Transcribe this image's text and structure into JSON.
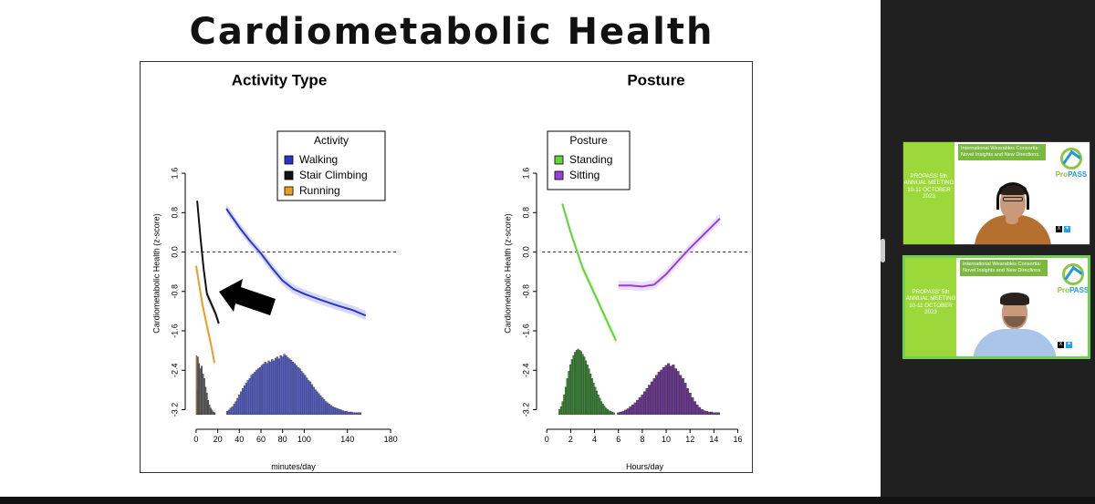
{
  "slide": {
    "title": "Cardiometabolic Health"
  },
  "chart_data": [
    {
      "type": "line",
      "title": "Activity Type",
      "xlabel": "minutes/day",
      "ylabel": "Cardiometabolic Health (z-score)",
      "xlim": [
        -5,
        185
      ],
      "ylim": [
        -3.45,
        2.6
      ],
      "x_ticks": [
        "0",
        "20",
        "40",
        "60",
        "80",
        "100",
        "140",
        "180"
      ],
      "x_tick_values": [
        0,
        20,
        40,
        60,
        80,
        100,
        140,
        180
      ],
      "y_ticks": [
        "-3.2",
        "-2.4",
        "-1.6",
        "-0.8",
        "0.0",
        "0.8",
        "1.6"
      ],
      "y_tick_values": [
        -3.2,
        -2.4,
        -1.6,
        -0.8,
        0.0,
        0.8,
        1.6
      ],
      "reference_line_y": 0,
      "legend_title": "Activity",
      "legend_placement": "top-right",
      "series": [
        {
          "name": "Walking",
          "color": "#2a36c8",
          "band_color": "#b4b8f0",
          "x": [
            28,
            40,
            50,
            60,
            70,
            80,
            90,
            100,
            115,
            130,
            145,
            157
          ],
          "y": [
            0.88,
            0.5,
            0.22,
            -0.03,
            -0.32,
            -0.58,
            -0.75,
            -0.85,
            -0.97,
            -1.08,
            -1.18,
            -1.29
          ]
        },
        {
          "name": "Stair Climbing",
          "color": "#111111",
          "band_color": "#bbbbbb",
          "x": [
            1,
            4,
            7,
            10,
            14,
            18,
            21
          ],
          "y": [
            1.04,
            0.3,
            -0.35,
            -0.85,
            -1.05,
            -1.25,
            -1.45
          ]
        },
        {
          "name": "Running",
          "color": "#e8a020",
          "band_color": "#f3d79a",
          "x": [
            0,
            3,
            6,
            10,
            14,
            17
          ],
          "y": [
            -0.28,
            -0.68,
            -1.08,
            -1.5,
            -1.9,
            -2.25
          ]
        }
      ],
      "histograms": [
        {
          "name": "Running",
          "color": "#e8a020",
          "x_start": 0,
          "bin_width": 0.65,
          "rel_heights": [
            0.9,
            0.35,
            0.25,
            0.2,
            0.15,
            0.1,
            0.07,
            0.05,
            0.03
          ]
        },
        {
          "name": "Stair Climbing",
          "color": "#666666",
          "x_start": 1,
          "bin_width": 1.2,
          "rel_heights": [
            0.88,
            0.78,
            0.7,
            0.74,
            0.62,
            0.55,
            0.42,
            0.33,
            0.22,
            0.15,
            0.1,
            0.07,
            0.04,
            0.03
          ]
        },
        {
          "name": "Walking",
          "color": "#5a63c8",
          "x_start": 28,
          "bin_width": 1.6,
          "rel_heights": [
            0.05,
            0.07,
            0.1,
            0.12,
            0.16,
            0.2,
            0.25,
            0.3,
            0.35,
            0.4,
            0.44,
            0.48,
            0.52,
            0.55,
            0.6,
            0.62,
            0.65,
            0.68,
            0.7,
            0.72,
            0.75,
            0.77,
            0.8,
            0.78,
            0.82,
            0.8,
            0.84,
            0.82,
            0.86,
            0.88,
            0.85,
            0.9,
            0.88,
            0.92,
            0.9,
            0.87,
            0.85,
            0.83,
            0.8,
            0.78,
            0.75,
            0.72,
            0.7,
            0.66,
            0.63,
            0.6,
            0.56,
            0.52,
            0.5,
            0.46,
            0.42,
            0.38,
            0.35,
            0.32,
            0.29,
            0.26,
            0.23,
            0.2,
            0.18,
            0.16,
            0.14,
            0.12,
            0.11,
            0.1,
            0.09,
            0.08,
            0.07,
            0.06,
            0.05,
            0.05,
            0.04,
            0.04,
            0.04,
            0.03,
            0.03,
            0.03,
            0.03,
            0.03
          ]
        }
      ],
      "annotations": [
        {
          "type": "arrow",
          "color": "#000000",
          "points_to": "Stair Climbing / Running"
        }
      ]
    },
    {
      "type": "line",
      "title": "Posture",
      "xlabel": "Hours/day",
      "ylabel": "Cardiometabolic Health (z-score)",
      "xlim": [
        -0.4,
        16.8
      ],
      "ylim": [
        -3.45,
        2.6
      ],
      "x_ticks": [
        "0",
        "2",
        "4",
        "6",
        "8",
        "10",
        "12",
        "14",
        "16"
      ],
      "x_tick_values": [
        0,
        2,
        4,
        6,
        8,
        10,
        12,
        14,
        16
      ],
      "y_ticks": [
        "-3.2",
        "-2.4",
        "-1.6",
        "-0.8",
        "0.0",
        "0.8",
        "1.6"
      ],
      "y_tick_values": [
        -3.2,
        -2.4,
        -1.6,
        -0.8,
        0.0,
        0.8,
        1.6
      ],
      "reference_line_y": 0,
      "legend_title": "Posture",
      "legend_placement": "top-left",
      "series": [
        {
          "name": "Standing",
          "color": "#66d23a",
          "band_color": "#c8f0b8",
          "x": [
            1.3,
            2.0,
            3.0,
            4.0,
            5.0,
            5.8
          ],
          "y": [
            0.98,
            0.4,
            -0.32,
            -0.85,
            -1.38,
            -1.8
          ]
        },
        {
          "name": "Sitting",
          "color": "#9a3ed6",
          "band_color": "#dcc4f0",
          "x": [
            6.0,
            7.0,
            8.0,
            9.0,
            10.0,
            11.0,
            12.0,
            13.0,
            14.5
          ],
          "y": [
            -0.68,
            -0.68,
            -0.7,
            -0.66,
            -0.45,
            -0.18,
            0.08,
            0.32,
            0.68
          ]
        }
      ],
      "histograms": [
        {
          "name": "Standing",
          "color": "#3e8a3a",
          "x_start": 1.0,
          "bin_width": 0.13,
          "rel_heights": [
            0.08,
            0.12,
            0.2,
            0.3,
            0.42,
            0.55,
            0.66,
            0.76,
            0.84,
            0.9,
            0.95,
            0.98,
            1.0,
            0.98,
            0.96,
            0.92,
            0.88,
            0.82,
            0.76,
            0.7,
            0.62,
            0.55,
            0.48,
            0.42,
            0.36,
            0.3,
            0.25,
            0.2,
            0.16,
            0.13,
            0.1,
            0.08,
            0.06,
            0.05,
            0.04,
            0.03
          ]
        },
        {
          "name": "Sitting",
          "color": "#6a3a8e",
          "x_start": 5.9,
          "bin_width": 0.2,
          "rel_heights": [
            0.03,
            0.04,
            0.05,
            0.07,
            0.09,
            0.12,
            0.15,
            0.18,
            0.22,
            0.26,
            0.3,
            0.35,
            0.4,
            0.45,
            0.5,
            0.55,
            0.6,
            0.65,
            0.68,
            0.72,
            0.75,
            0.78,
            0.74,
            0.76,
            0.7,
            0.66,
            0.6,
            0.55,
            0.48,
            0.4,
            0.33,
            0.26,
            0.2,
            0.15,
            0.11,
            0.08,
            0.06,
            0.05,
            0.04,
            0.04,
            0.03,
            0.03,
            0.03
          ]
        }
      ]
    }
  ],
  "sidebar": {
    "tiles": [
      {
        "id": "tile-1",
        "active_speaker": false,
        "left_text": "PROPASS' 5th ANNUAL MEETING 10-11 OCTOBER 2023",
        "header_text": "International Wearables Consortia: Novel Insights and New Directions.",
        "logo": {
          "main": "Pro",
          "accent": "PASS"
        },
        "participant": {
          "headphones": true,
          "glasses": true,
          "shirt_color": "#b5702f"
        }
      },
      {
        "id": "tile-2",
        "active_speaker": true,
        "left_text": "PROPASS' 5th ANNUAL MEETING 10-11 OCTOBER 2023",
        "header_text": "International Wearables Consortia: Novel Insights and New Directions.",
        "logo": {
          "main": "Pro",
          "accent": "PASS"
        },
        "participant": {
          "headphones": false,
          "glasses": false,
          "shirt_color": "#a9c6ea"
        }
      }
    ]
  }
}
